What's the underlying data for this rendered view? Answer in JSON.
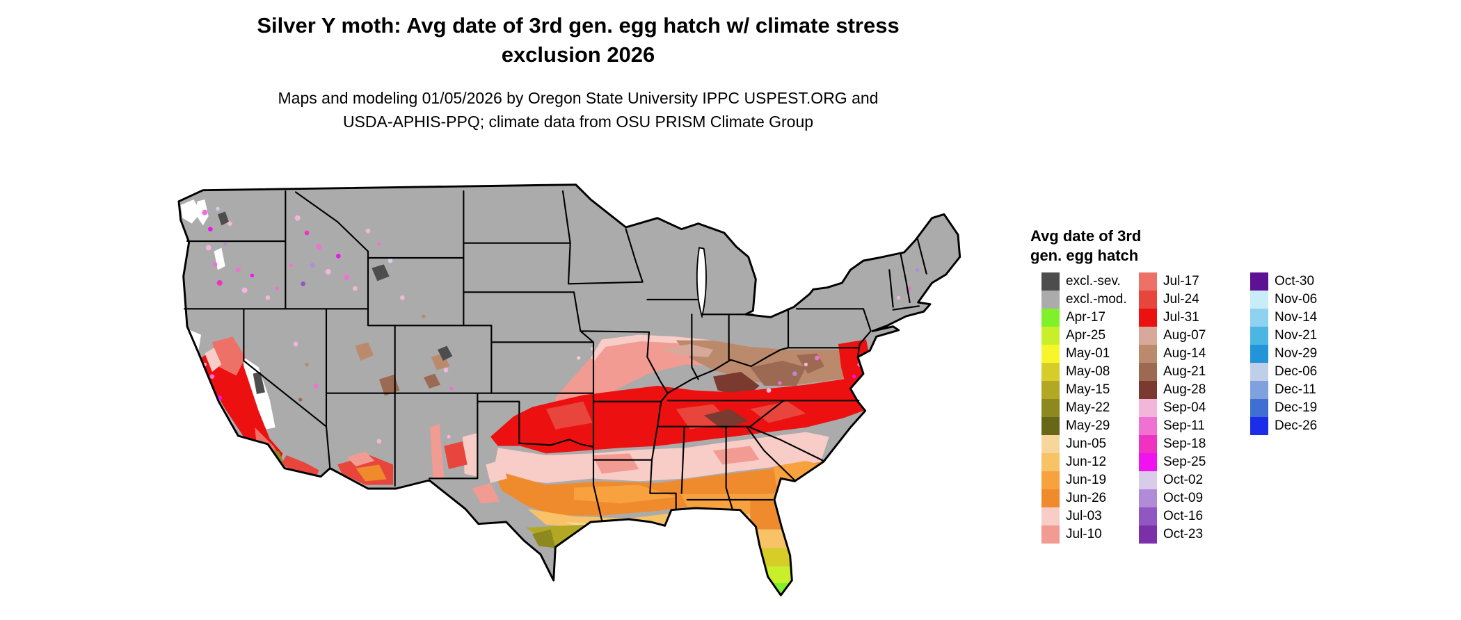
{
  "header": {
    "title_line1": "Silver Y moth: Avg date of 3rd gen. egg hatch w/ climate stress",
    "title_line2": "exclusion 2026",
    "subtitle_line1": "Maps and modeling 01/05/2026 by Oregon State University IPPC USPEST.ORG and",
    "subtitle_line2": "USDA-APHIS-PPQ; climate data from OSU PRISM Climate Group"
  },
  "legend": {
    "title_line1": "Avg date of 3rd",
    "title_line2": "gen. egg hatch",
    "columns": [
      {
        "entries": [
          {
            "label": "excl.-sev.",
            "color": "#4d4d4d"
          },
          {
            "label": "excl.-mod.",
            "color": "#ababab"
          },
          {
            "label": "Apr-17",
            "color": "#7ff02a"
          },
          {
            "label": "Apr-25",
            "color": "#c9ef2a"
          },
          {
            "label": "May-01",
            "color": "#f6f62a"
          },
          {
            "label": "May-08",
            "color": "#d7cd28"
          },
          {
            "label": "May-15",
            "color": "#b2a824"
          },
          {
            "label": "May-22",
            "color": "#8d891e"
          },
          {
            "label": "May-29",
            "color": "#686617"
          },
          {
            "label": "Jun-05",
            "color": "#f6d69a"
          },
          {
            "label": "Jun-12",
            "color": "#f8c267"
          },
          {
            "label": "Jun-19",
            "color": "#f7a23f"
          },
          {
            "label": "Jun-26",
            "color": "#ef8b2d"
          },
          {
            "label": "Jul-03",
            "color": "#f8cdc8"
          },
          {
            "label": "Jul-10",
            "color": "#f29b93"
          }
        ]
      },
      {
        "entries": [
          {
            "label": "Jul-17",
            "color": "#ee7168"
          },
          {
            "label": "Jul-24",
            "color": "#e8453c"
          },
          {
            "label": "Jul-31",
            "color": "#ec1010"
          },
          {
            "label": "Aug-07",
            "color": "#d8a89a"
          },
          {
            "label": "Aug-14",
            "color": "#bb8a6d"
          },
          {
            "label": "Aug-21",
            "color": "#9c6a53"
          },
          {
            "label": "Aug-28",
            "color": "#7b3a30"
          },
          {
            "label": "Sep-04",
            "color": "#f4b5da"
          },
          {
            "label": "Sep-11",
            "color": "#ef72d2"
          },
          {
            "label": "Sep-18",
            "color": "#f032c0"
          },
          {
            "label": "Sep-25",
            "color": "#f013ef"
          },
          {
            "label": "Oct-02",
            "color": "#d8cce9"
          },
          {
            "label": "Oct-09",
            "color": "#b28bd8"
          },
          {
            "label": "Oct-16",
            "color": "#9256c3"
          },
          {
            "label": "Oct-23",
            "color": "#7b2fa9"
          }
        ]
      },
      {
        "entries": [
          {
            "label": "Oct-30",
            "color": "#5d1193"
          },
          {
            "label": "Nov-06",
            "color": "#c8edf8"
          },
          {
            "label": "Nov-14",
            "color": "#8ed2f0"
          },
          {
            "label": "Nov-21",
            "color": "#4cb6e3"
          },
          {
            "label": "Nov-29",
            "color": "#2394d8"
          },
          {
            "label": "Dec-06",
            "color": "#bfcfe9"
          },
          {
            "label": "Dec-11",
            "color": "#7fa2de"
          },
          {
            "label": "Dec-19",
            "color": "#3f6fd3"
          },
          {
            "label": "Dec-26",
            "color": "#1b2de9"
          }
        ]
      }
    ]
  }
}
